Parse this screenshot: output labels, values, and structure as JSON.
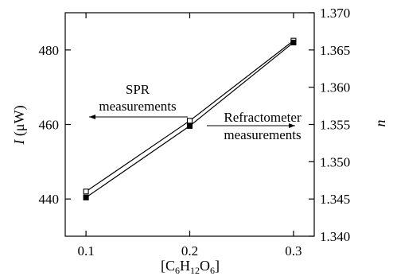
{
  "chart_data": {
    "type": "line",
    "title": "",
    "x": [
      0.1,
      0.2,
      0.3
    ],
    "xlim": [
      0.08,
      0.32
    ],
    "xticks": [
      "0.1",
      "0.2",
      "0.3"
    ],
    "xlabel_parts": [
      "[C",
      "6",
      "H",
      "12",
      "O",
      "6",
      "]"
    ],
    "ylabel_italic": "I",
    "ylabel_rest": " (μW)",
    "ylim": [
      430,
      490
    ],
    "yticks": [
      "440",
      "460",
      "480"
    ],
    "y2label": "n",
    "y2lim": [
      1.34,
      1.37
    ],
    "y2ticks": [
      "1.340",
      "1.345",
      "1.350",
      "1.355",
      "1.360",
      "1.365",
      "1.370"
    ],
    "series": [
      {
        "name": "SPR measurements",
        "axis": "left",
        "marker": "open-square",
        "values": [
          442,
          461,
          482.5
        ]
      },
      {
        "name": "Refractometer measurements",
        "axis": "right",
        "marker": "filled-square",
        "values": [
          1.3452,
          1.3548,
          1.366
        ]
      }
    ],
    "annotations": [
      {
        "lines": [
          "SPR",
          "measurements"
        ],
        "arrow": "left"
      },
      {
        "lines": [
          "Refractometer",
          "measurements"
        ],
        "arrow": "right"
      }
    ],
    "grid": false
  }
}
